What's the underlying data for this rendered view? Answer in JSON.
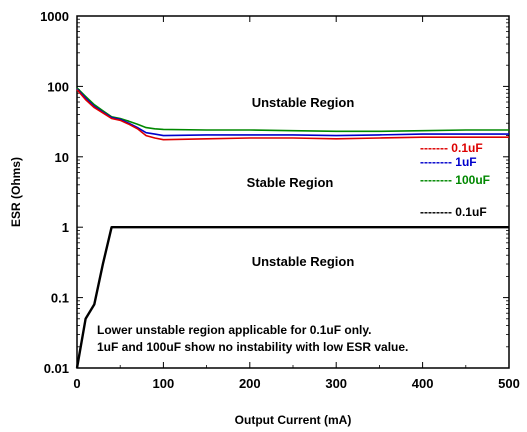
{
  "chart_data": {
    "type": "line",
    "xlabel": "Output Current (mA)",
    "ylabel": "ESR (Ohms)",
    "xlim": [
      0,
      500
    ],
    "ylim": [
      0.01,
      1000
    ],
    "yscale": "log",
    "x_ticks": [
      "0",
      "100",
      "200",
      "300",
      "400",
      "500"
    ],
    "y_ticks": [
      "0.01",
      "0.1",
      "1",
      "10",
      "100",
      "1000"
    ],
    "grid": false,
    "colors": {
      "red": "#dd0000",
      "blue": "#0000cc",
      "green": "#008800",
      "black": "#000000"
    },
    "upper_series": [
      {
        "label": "------- 0.1uF",
        "color": "#dd0000",
        "x": [
          0,
          10,
          20,
          30,
          40,
          50,
          60,
          70,
          80,
          90,
          100,
          150,
          200,
          250,
          300,
          350,
          400,
          450,
          500
        ],
        "y": [
          90,
          65,
          50,
          42,
          35,
          33,
          29,
          25,
          20,
          18.5,
          17.5,
          18,
          18.5,
          18.5,
          18,
          18.5,
          19,
          19,
          19
        ]
      },
      {
        "label": "-------- 1uF",
        "color": "#0000cc",
        "x": [
          0,
          10,
          20,
          30,
          40,
          50,
          60,
          70,
          80,
          90,
          100,
          150,
          200,
          250,
          300,
          350,
          400,
          450,
          500
        ],
        "y": [
          92,
          68,
          52,
          43,
          36,
          34,
          30,
          26,
          22,
          21,
          20,
          20.5,
          20.5,
          20.5,
          20,
          20.5,
          21,
          21,
          21
        ]
      },
      {
        "label": "-------- 100uF",
        "color": "#008800",
        "x": [
          0,
          10,
          20,
          30,
          40,
          50,
          60,
          70,
          80,
          90,
          100,
          150,
          200,
          250,
          300,
          350,
          400,
          450,
          500
        ],
        "y": [
          95,
          72,
          55,
          45,
          37,
          35,
          32,
          29,
          26,
          25,
          24.5,
          24,
          24,
          23.5,
          23,
          23,
          23.5,
          24,
          24
        ]
      }
    ],
    "lower_series": {
      "label": "-------- 0.1uF",
      "color": "#000000",
      "x": [
        0,
        10,
        20,
        30,
        40,
        100,
        200,
        300,
        400,
        500
      ],
      "y": [
        0.01,
        0.05,
        0.08,
        0.3,
        1,
        1,
        1,
        1,
        1,
        1
      ]
    },
    "annotations": {
      "upper_region": "Unstable Region",
      "stable_region": "Stable Region",
      "lower_region": "Unstable Region",
      "note_line1": "Lower unstable region applicable for 0.1uF only.",
      "note_line2": "1uF and 100uF show no instability with low ESR value."
    }
  }
}
